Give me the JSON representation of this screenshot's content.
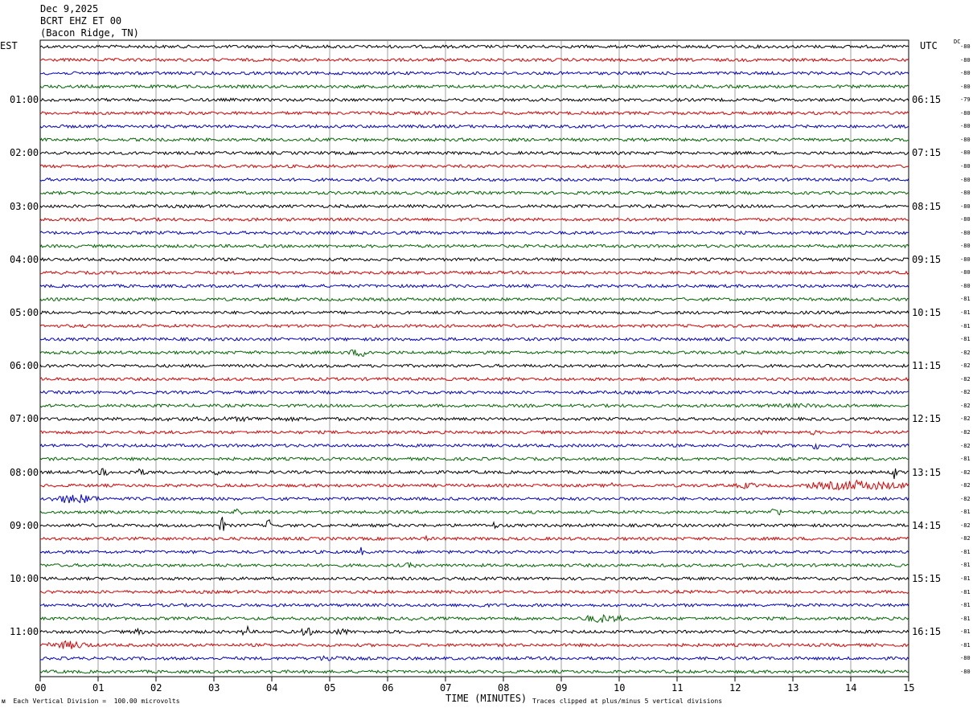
{
  "header": {
    "date": "Dec 9,2025",
    "station": "BCRT EHZ ET 00",
    "location": "(Bacon Ridge, TN)"
  },
  "left_zone_label": "EST",
  "right_zone_label": "UTC",
  "dc_header": "DC",
  "x_axis_title": "TIME (MINUTES)",
  "footer": {
    "scale_note": "Each Vertical Division =  100.00 microvolts",
    "clip_note": "Traces clipped at plus/minus 5 vertical divisions"
  },
  "chart_data": {
    "type": "line",
    "subtype": "helicorder",
    "x_ticks": [
      "00",
      "01",
      "02",
      "03",
      "04",
      "05",
      "06",
      "07",
      "08",
      "09",
      "10",
      "11",
      "12",
      "13",
      "14",
      "15"
    ],
    "x_range_minutes": [
      0,
      15
    ],
    "trace_minutes": 15,
    "trace_count": 48,
    "trace_colors": [
      "#000000",
      "#dd0000",
      "#0000cc",
      "#006600"
    ],
    "left_time_labels": [
      {
        "trace": 4,
        "label": "01:00"
      },
      {
        "trace": 8,
        "label": "02:00"
      },
      {
        "trace": 12,
        "label": "03:00"
      },
      {
        "trace": 16,
        "label": "04:00"
      },
      {
        "trace": 20,
        "label": "05:00"
      },
      {
        "trace": 24,
        "label": "06:00"
      },
      {
        "trace": 28,
        "label": "07:00"
      },
      {
        "trace": 32,
        "label": "08:00"
      },
      {
        "trace": 36,
        "label": "09:00"
      },
      {
        "trace": 40,
        "label": "10:00"
      },
      {
        "trace": 44,
        "label": "11:00"
      }
    ],
    "right_time_labels": [
      {
        "trace": 4,
        "label": "06:15"
      },
      {
        "trace": 8,
        "label": "07:15"
      },
      {
        "trace": 12,
        "label": "08:15"
      },
      {
        "trace": 16,
        "label": "09:15"
      },
      {
        "trace": 20,
        "label": "10:15"
      },
      {
        "trace": 24,
        "label": "11:15"
      },
      {
        "trace": 28,
        "label": "12:15"
      },
      {
        "trace": 32,
        "label": "13:15"
      },
      {
        "trace": 36,
        "label": "14:15"
      },
      {
        "trace": 40,
        "label": "15:15"
      },
      {
        "trace": 44,
        "label": "16:15"
      }
    ],
    "dc_offsets": [
      "-80",
      "-80",
      "-80",
      "-80",
      "-79",
      "-80",
      "-80",
      "-80",
      "-80",
      "-80",
      "-80",
      "-80",
      "-80",
      "-80",
      "-80",
      "-80",
      "-80",
      "-80",
      "-80",
      "-81",
      "-81",
      "-81",
      "-81",
      "-82",
      "-82",
      "-82",
      "-82",
      "-82",
      "-82",
      "-82",
      "-82",
      "-81",
      "-82",
      "-82",
      "-82",
      "-81",
      "-82",
      "-82",
      "-81",
      "-81",
      "-81",
      "-81",
      "-81",
      "-81",
      "-81",
      "-81",
      "-80",
      "-80"
    ],
    "events": [
      {
        "trace": 23,
        "start_min": 5.3,
        "end_min": 5.8,
        "amp_div": 2.5
      },
      {
        "trace": 27,
        "start_min": 11.3,
        "end_min": 15.0,
        "amp_div": 1.2
      },
      {
        "trace": 28,
        "start_min": 0.0,
        "end_min": 7.0,
        "amp_div": 1.3
      },
      {
        "trace": 29,
        "start_min": 12.4,
        "end_min": 12.5,
        "amp_div": 2.0
      },
      {
        "trace": 29,
        "start_min": 13.3,
        "end_min": 13.4,
        "amp_div": 2.0
      },
      {
        "trace": 30,
        "start_min": 13.35,
        "end_min": 13.45,
        "amp_div": 3.0
      },
      {
        "trace": 32,
        "start_min": 1.0,
        "end_min": 1.2,
        "amp_div": 2.5
      },
      {
        "trace": 32,
        "start_min": 1.5,
        "end_min": 1.9,
        "amp_div": 2.0
      },
      {
        "trace": 32,
        "start_min": 2.9,
        "end_min": 3.1,
        "amp_div": 2.5
      },
      {
        "trace": 32,
        "start_min": 6.5,
        "end_min": 6.7,
        "amp_div": 2.0
      },
      {
        "trace": 32,
        "start_min": 14.7,
        "end_min": 14.8,
        "amp_div": 5.0
      },
      {
        "trace": 33,
        "start_min": 9.8,
        "end_min": 9.9,
        "amp_div": 2.5
      },
      {
        "trace": 33,
        "start_min": 12.0,
        "end_min": 12.4,
        "amp_div": 2.0
      },
      {
        "trace": 33,
        "start_min": 13.2,
        "end_min": 15.0,
        "amp_div": 3.0
      },
      {
        "trace": 34,
        "start_min": 0.2,
        "end_min": 1.0,
        "amp_div": 3.0
      },
      {
        "trace": 35,
        "start_min": 3.3,
        "end_min": 3.5,
        "amp_div": 2.0
      },
      {
        "trace": 35,
        "start_min": 12.6,
        "end_min": 12.8,
        "amp_div": 3.0
      },
      {
        "trace": 36,
        "start_min": 3.1,
        "end_min": 3.2,
        "amp_div": 5.0
      },
      {
        "trace": 36,
        "start_min": 3.9,
        "end_min": 4.0,
        "amp_div": 4.0
      },
      {
        "trace": 36,
        "start_min": 7.8,
        "end_min": 7.9,
        "amp_div": 2.5
      },
      {
        "trace": 37,
        "start_min": 6.6,
        "end_min": 6.7,
        "amp_div": 2.0
      },
      {
        "trace": 38,
        "start_min": 5.5,
        "end_min": 5.6,
        "amp_div": 3.0
      },
      {
        "trace": 39,
        "start_min": 6.3,
        "end_min": 6.5,
        "amp_div": 2.0
      },
      {
        "trace": 42,
        "start_min": 7.3,
        "end_min": 7.8,
        "amp_div": 1.6
      },
      {
        "trace": 43,
        "start_min": 6.4,
        "end_min": 6.6,
        "amp_div": 2.0
      },
      {
        "trace": 43,
        "start_min": 9.3,
        "end_min": 10.1,
        "amp_div": 2.5
      },
      {
        "trace": 44,
        "start_min": 1.6,
        "end_min": 1.8,
        "amp_div": 2.0
      },
      {
        "trace": 44,
        "start_min": 3.5,
        "end_min": 3.6,
        "amp_div": 5.0
      },
      {
        "trace": 44,
        "start_min": 4.5,
        "end_min": 4.7,
        "amp_div": 3.0
      },
      {
        "trace": 44,
        "start_min": 5.0,
        "end_min": 5.4,
        "amp_div": 2.0
      },
      {
        "trace": 45,
        "start_min": 0.1,
        "end_min": 0.9,
        "amp_div": 2.5
      },
      {
        "trace": 46,
        "start_min": 4.7,
        "end_min": 5.4,
        "amp_div": 2.0
      }
    ]
  }
}
